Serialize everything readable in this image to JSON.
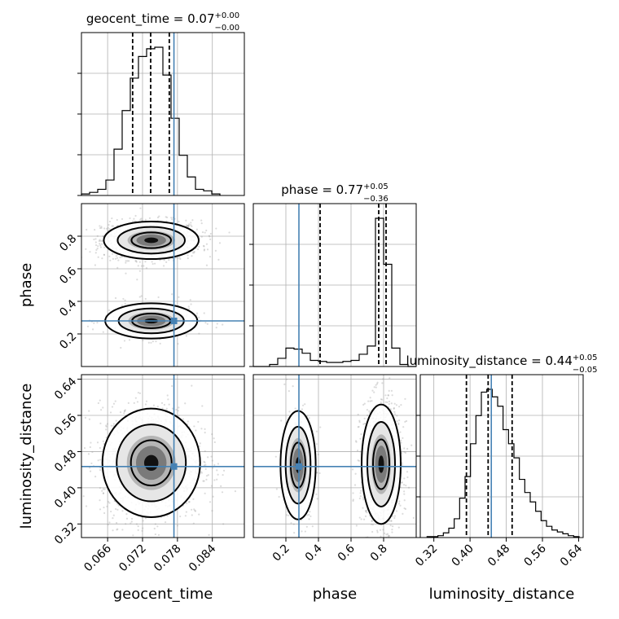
{
  "chart_data": {
    "type": "corner",
    "parameters": [
      {
        "name": "geocent_time",
        "label": "geocent_time",
        "truth": 0.0774,
        "title": {
          "main": "geocent_time = 0.07",
          "sup": "+0.00",
          "sub": "−0.00"
        },
        "quantiles": [
          0.0703,
          0.0734,
          0.0766
        ],
        "range": [
          0.0615,
          0.0895
        ],
        "ticks": [
          "0.066",
          "0.072",
          "0.078",
          "0.084"
        ],
        "tick_values": [
          0.066,
          0.072,
          0.078,
          0.084
        ],
        "hist_bins": [
          0.0615,
          0.0629,
          0.0643,
          0.0657,
          0.0671,
          0.0685,
          0.0699,
          0.0713,
          0.0727,
          0.0741,
          0.0755,
          0.0769,
          0.0783,
          0.0797,
          0.0811,
          0.0825,
          0.0839,
          0.0853
        ],
        "hist_counts": [
          1,
          2,
          4,
          10,
          30,
          55,
          76,
          90,
          95,
          96,
          78,
          50,
          26,
          12,
          4,
          3,
          1
        ]
      },
      {
        "name": "phase",
        "label": "phase",
        "truth": 0.28,
        "title": {
          "main": "phase = 0.77",
          "sup": "+0.05",
          "sub": "−0.36"
        },
        "quantiles": [
          0.41,
          0.77,
          0.815
        ],
        "range": [
          0.0,
          1.0
        ],
        "ticks": [
          "0.2",
          "0.4",
          "0.6",
          "0.8"
        ],
        "tick_values": [
          0.2,
          0.4,
          0.6,
          0.8
        ],
        "hist_bins": [
          0.0,
          0.05,
          0.1,
          0.15,
          0.2,
          0.25,
          0.3,
          0.35,
          0.4,
          0.45,
          0.5,
          0.55,
          0.6,
          0.65,
          0.7,
          0.75,
          0.8,
          0.85,
          0.9,
          0.95,
          1.0
        ],
        "hist_counts": [
          0,
          0,
          2,
          8,
          18,
          17,
          13,
          6,
          5,
          4,
          4,
          5,
          6,
          12,
          20,
          145,
          100,
          18,
          2,
          0
        ]
      },
      {
        "name": "luminosity_distance",
        "label": "luminosity_distance",
        "truth": 0.447,
        "title": {
          "main": "luminosity_distance = 0.44",
          "sup": "+0.05",
          "sub": "−0.05"
        },
        "quantiles": [
          0.392,
          0.44,
          0.493
        ],
        "range": [
          0.29,
          0.65
        ],
        "ticks": [
          "0.32",
          "0.40",
          "0.48",
          "0.56",
          "0.64"
        ],
        "tick_values": [
          0.32,
          0.4,
          0.48,
          0.56,
          0.64
        ],
        "hist_bins": [
          0.305,
          0.317,
          0.329,
          0.341,
          0.353,
          0.365,
          0.377,
          0.389,
          0.401,
          0.413,
          0.425,
          0.437,
          0.449,
          0.461,
          0.473,
          0.485,
          0.497,
          0.509,
          0.521,
          0.533,
          0.545,
          0.557,
          0.569,
          0.581,
          0.593,
          0.605,
          0.617,
          0.629,
          0.641
        ],
        "hist_counts": [
          1,
          1,
          2,
          5,
          10,
          20,
          42,
          65,
          100,
          130,
          155,
          158,
          150,
          140,
          115,
          100,
          85,
          62,
          48,
          38,
          28,
          18,
          12,
          8,
          6,
          4,
          2,
          1
        ]
      }
    ],
    "pair_panels": [
      {
        "x": "geocent_time",
        "y": "phase",
        "modes": [
          {
            "cx": 0.0735,
            "cy": 0.775,
            "sx": 0.0034,
            "sy": 0.048,
            "weight": 0.8
          },
          {
            "cx": 0.0735,
            "cy": 0.28,
            "sx": 0.0033,
            "sy": 0.045,
            "weight": 0.2
          }
        ]
      },
      {
        "x": "geocent_time",
        "y": "luminosity_distance",
        "modes": [
          {
            "cx": 0.0735,
            "cy": 0.455,
            "sx": 0.0035,
            "sy": 0.05,
            "weight": 1.0
          }
        ]
      },
      {
        "x": "phase",
        "y": "luminosity_distance",
        "modes": [
          {
            "cx": 0.785,
            "cy": 0.452,
            "sx": 0.05,
            "sy": 0.055,
            "weight": 0.8
          },
          {
            "cx": 0.275,
            "cy": 0.45,
            "sx": 0.045,
            "sy": 0.05,
            "weight": 0.2
          }
        ]
      }
    ],
    "grid": true
  }
}
